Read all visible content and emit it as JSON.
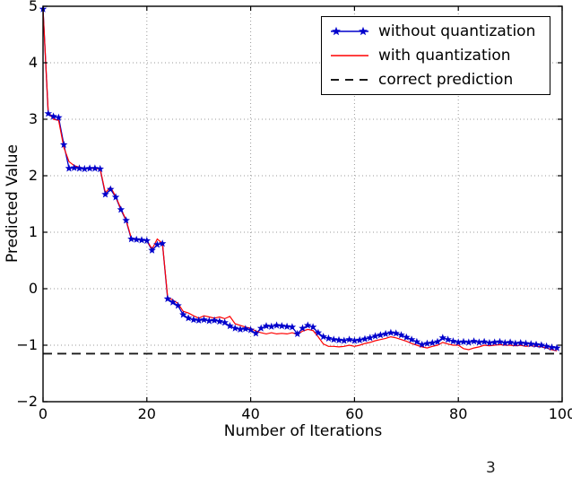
{
  "figure": {
    "corner_fragment": "3"
  },
  "axes": {
    "xlabel": "Number of Iterations",
    "ylabel": "Predicted Value",
    "x_tick_labels": [
      "0",
      "20",
      "40",
      "60",
      "80",
      "100"
    ],
    "y_tick_labels": [
      "−2",
      "−1",
      "0",
      "1",
      "2",
      "3",
      "4",
      "5"
    ]
  },
  "legend": {
    "position": "upper right",
    "items": [
      {
        "label": "without quantization",
        "swatch": "line-with-stars",
        "color": "#0000cc"
      },
      {
        "label": "with quantization",
        "swatch": "solid-line",
        "color": "#ff0000"
      },
      {
        "label": "correct prediction",
        "swatch": "dashed-line",
        "color": "#1a1a1a"
      }
    ]
  },
  "colors": {
    "without_quantization": "#0000cc",
    "with_quantization": "#ff0000",
    "correct_prediction": "#1a1a1a",
    "grid": "#999999",
    "frame": "#000000"
  },
  "chart_data": {
    "type": "line",
    "title": "",
    "xlabel": "Number of Iterations",
    "ylabel": "Predicted Value",
    "xlim": [
      0,
      100
    ],
    "ylim": [
      -2,
      5
    ],
    "x_tick_values": [
      0,
      20,
      40,
      60,
      80,
      100
    ],
    "y_tick_values": [
      -2,
      -1,
      0,
      1,
      2,
      3,
      4,
      5
    ],
    "grid": "dotted",
    "legend_position": "upper right",
    "x": [
      0,
      1,
      2,
      3,
      4,
      5,
      6,
      7,
      8,
      9,
      10,
      11,
      12,
      13,
      14,
      15,
      16,
      17,
      18,
      19,
      20,
      21,
      22,
      23,
      24,
      25,
      26,
      27,
      28,
      29,
      30,
      31,
      32,
      33,
      34,
      35,
      36,
      37,
      38,
      39,
      40,
      41,
      42,
      43,
      44,
      45,
      46,
      47,
      48,
      49,
      50,
      51,
      52,
      53,
      54,
      55,
      56,
      57,
      58,
      59,
      60,
      61,
      62,
      63,
      64,
      65,
      66,
      67,
      68,
      69,
      70,
      71,
      72,
      73,
      74,
      75,
      76,
      77,
      78,
      79,
      80,
      81,
      82,
      83,
      84,
      85,
      86,
      87,
      88,
      89,
      90,
      91,
      92,
      93,
      94,
      95,
      96,
      97,
      98,
      99
    ],
    "series": [
      {
        "name": "without quantization",
        "color": "#0000cc",
        "marker": "star",
        "values": [
          4.95,
          3.1,
          3.05,
          3.03,
          2.55,
          2.13,
          2.14,
          2.13,
          2.12,
          2.13,
          2.13,
          2.12,
          1.67,
          1.76,
          1.62,
          1.4,
          1.21,
          0.88,
          0.87,
          0.86,
          0.85,
          0.68,
          0.78,
          0.8,
          -0.18,
          -0.24,
          -0.3,
          -0.46,
          -0.52,
          -0.55,
          -0.56,
          -0.55,
          -0.57,
          -0.56,
          -0.58,
          -0.6,
          -0.66,
          -0.7,
          -0.72,
          -0.71,
          -0.73,
          -0.79,
          -0.7,
          -0.66,
          -0.67,
          -0.65,
          -0.66,
          -0.67,
          -0.68,
          -0.8,
          -0.7,
          -0.65,
          -0.68,
          -0.78,
          -0.85,
          -0.88,
          -0.9,
          -0.91,
          -0.92,
          -0.9,
          -0.92,
          -0.91,
          -0.89,
          -0.87,
          -0.84,
          -0.82,
          -0.8,
          -0.78,
          -0.79,
          -0.82,
          -0.86,
          -0.9,
          -0.94,
          -0.99,
          -0.97,
          -0.96,
          -0.94,
          -0.87,
          -0.9,
          -0.93,
          -0.95,
          -0.94,
          -0.95,
          -0.93,
          -0.95,
          -0.94,
          -0.96,
          -0.95,
          -0.94,
          -0.96,
          -0.95,
          -0.97,
          -0.96,
          -0.97,
          -0.98,
          -0.99,
          -1.0,
          -1.02,
          -1.04,
          -1.05
        ]
      },
      {
        "name": "with quantization",
        "color": "#ff0000",
        "marker": "none",
        "values": [
          4.95,
          3.12,
          3.0,
          2.98,
          2.5,
          2.25,
          2.18,
          2.15,
          2.13,
          2.14,
          2.13,
          2.12,
          1.7,
          1.8,
          1.63,
          1.42,
          1.22,
          0.9,
          0.88,
          0.87,
          0.86,
          0.7,
          0.88,
          0.8,
          -0.15,
          -0.2,
          -0.26,
          -0.4,
          -0.43,
          -0.48,
          -0.52,
          -0.48,
          -0.5,
          -0.52,
          -0.5,
          -0.53,
          -0.49,
          -0.62,
          -0.65,
          -0.68,
          -0.7,
          -0.75,
          -0.78,
          -0.8,
          -0.78,
          -0.8,
          -0.79,
          -0.8,
          -0.78,
          -0.81,
          -0.75,
          -0.72,
          -0.74,
          -0.85,
          -0.98,
          -1.02,
          -1.02,
          -1.03,
          -1.02,
          -1.0,
          -1.02,
          -1.0,
          -0.97,
          -0.95,
          -0.92,
          -0.9,
          -0.88,
          -0.85,
          -0.87,
          -0.9,
          -0.93,
          -0.97,
          -1.0,
          -1.03,
          -1.05,
          -1.02,
          -1.0,
          -0.95,
          -0.98,
          -1.0,
          -1.0,
          -1.06,
          -1.08,
          -1.05,
          -1.03,
          -1.0,
          -1.01,
          -1.0,
          -0.99,
          -1.0,
          -1.0,
          -1.01,
          -1.0,
          -1.02,
          -1.01,
          -1.02,
          -1.03,
          -1.05,
          -1.08,
          -1.1
        ]
      },
      {
        "name": "correct prediction",
        "color": "#1a1a1a",
        "style": "dashed",
        "constant": -1.15
      }
    ]
  }
}
